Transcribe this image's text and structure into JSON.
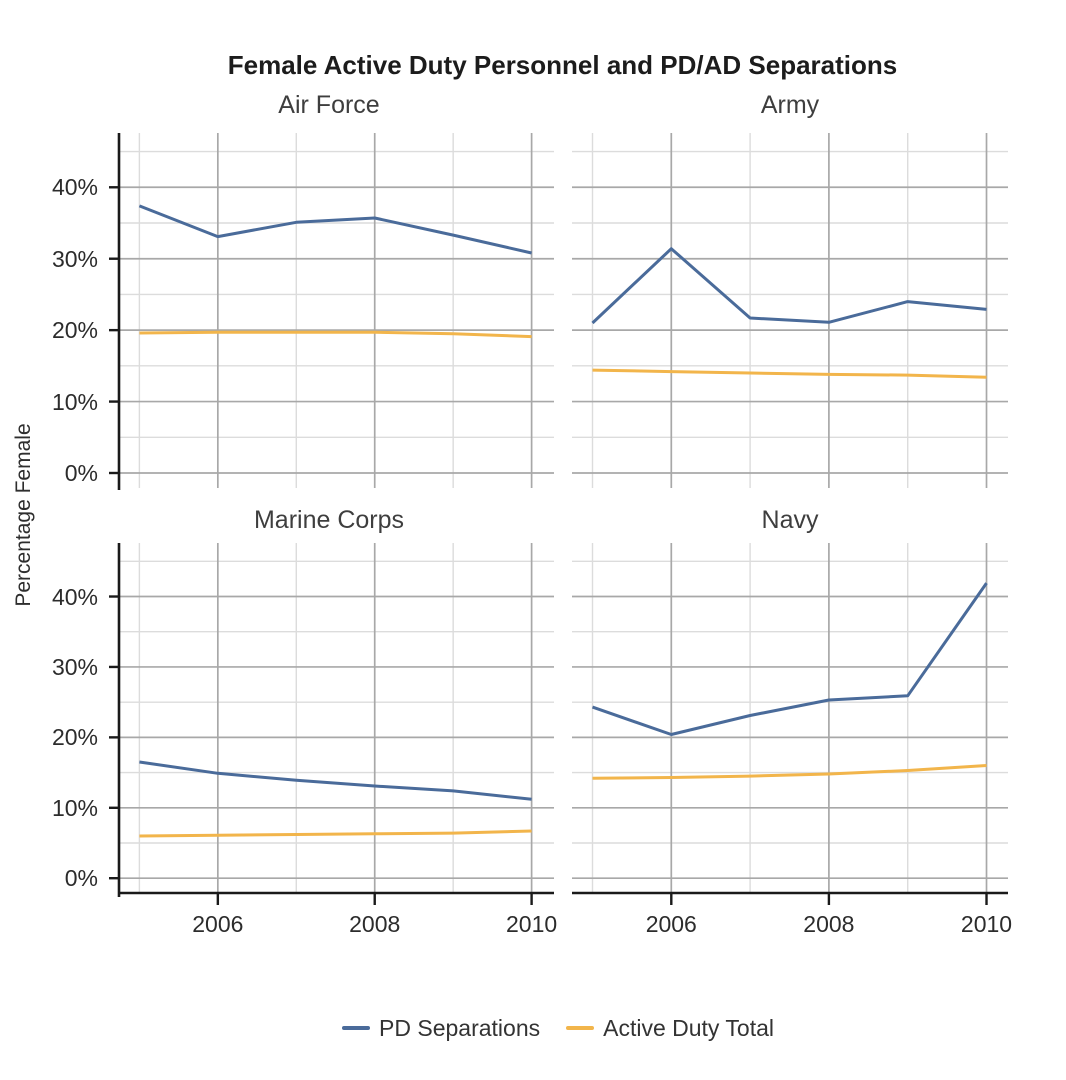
{
  "title": "Female Active Duty Personnel and PD/AD Separations",
  "chart_data": {
    "type": "line",
    "layout": "facet-grid-2x2",
    "title": "Female Active Duty Personnel and PD/AD Separations",
    "xlabel": "",
    "ylabel": "Percentage Female",
    "x": [
      2005,
      2006,
      2007,
      2008,
      2009,
      2010
    ],
    "xlim": [
      2004.74,
      2010.26
    ],
    "ylim": [
      -2.1,
      47.6
    ],
    "grid": "major and minor, gray on white",
    "legend_position": "bottom",
    "x_ticks": [
      {
        "value": 2006,
        "label": "2006"
      },
      {
        "value": 2008,
        "label": "2008"
      },
      {
        "value": 2010,
        "label": "2010"
      }
    ],
    "x_minor": [
      2005,
      2007,
      2009
    ],
    "y_ticks": [
      {
        "value": 0,
        "label": "0%"
      },
      {
        "value": 10,
        "label": "10%"
      },
      {
        "value": 20,
        "label": "20%"
      },
      {
        "value": 30,
        "label": "30%"
      },
      {
        "value": 40,
        "label": "40%"
      }
    ],
    "y_minor": [
      5,
      15,
      25,
      35,
      45
    ],
    "series_meta": [
      {
        "name": "PD Separations",
        "color": "#4a6b9a"
      },
      {
        "name": "Active Duty Total",
        "color": "#f2b54b"
      }
    ],
    "facets": [
      {
        "title": "Air Force",
        "series": [
          {
            "name": "PD Separations",
            "values": [
              37.4,
              33.1,
              35.1,
              35.7,
              33.3,
              30.8
            ]
          },
          {
            "name": "Active Duty Total",
            "values": [
              19.6,
              19.7,
              19.7,
              19.7,
              19.5,
              19.1
            ]
          }
        ]
      },
      {
        "title": "Army",
        "series": [
          {
            "name": "PD Separations",
            "values": [
              21.0,
              31.4,
              21.7,
              21.1,
              24.0,
              22.9
            ]
          },
          {
            "name": "Active Duty Total",
            "values": [
              14.4,
              14.2,
              14.0,
              13.8,
              13.7,
              13.4
            ]
          }
        ]
      },
      {
        "title": "Marine Corps",
        "series": [
          {
            "name": "PD Separations",
            "values": [
              16.5,
              14.9,
              13.9,
              13.1,
              12.4,
              11.2
            ]
          },
          {
            "name": "Active Duty Total",
            "values": [
              6.0,
              6.1,
              6.2,
              6.3,
              6.4,
              6.7
            ]
          }
        ]
      },
      {
        "title": "Navy",
        "series": [
          {
            "name": "PD Separations",
            "values": [
              24.3,
              20.4,
              23.1,
              25.3,
              25.9,
              41.9
            ]
          },
          {
            "name": "Active Duty Total",
            "values": [
              14.2,
              14.3,
              14.5,
              14.8,
              15.3,
              16.0
            ]
          }
        ]
      }
    ],
    "style": {
      "axis_color": "#1a1a1a",
      "major_grid_color": "#a8a8a8",
      "minor_grid_color": "#dcdcdc",
      "background": "#ffffff"
    }
  }
}
